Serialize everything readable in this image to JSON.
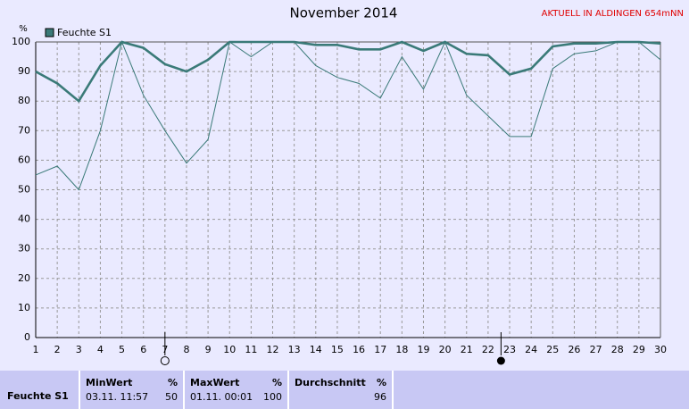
{
  "chart_data": {
    "type": "line",
    "title": "November 2014",
    "station": "AKTUELL IN ALDINGEN 654mNN",
    "y_label": "%",
    "x": [
      1,
      2,
      3,
      4,
      5,
      6,
      7,
      8,
      9,
      10,
      11,
      12,
      13,
      14,
      15,
      16,
      17,
      18,
      19,
      20,
      21,
      22,
      23,
      24,
      25,
      26,
      27,
      28,
      29,
      30
    ],
    "series": [
      {
        "name": "Feuchte S1",
        "color": "#3a7a78",
        "values": [
          90,
          86,
          80,
          92,
          100,
          98,
          92.5,
          90,
          94,
          100,
          100,
          100,
          100,
          99,
          99,
          97.5,
          97.5,
          100,
          97,
          100,
          96,
          95.5,
          89,
          91,
          98.5,
          99.5,
          99.5,
          100,
          100,
          99.5
        ]
      },
      {
        "color": "#3a7a78",
        "values": [
          55,
          58,
          50,
          70,
          100,
          82,
          70,
          59,
          67,
          100,
          95,
          100,
          100,
          92,
          88,
          86,
          81,
          95,
          84,
          100,
          82,
          75,
          68,
          68,
          91,
          96,
          97,
          100,
          100,
          94
        ]
      }
    ],
    "xlim": [
      1,
      30
    ],
    "xticks": [
      1,
      2,
      3,
      4,
      5,
      6,
      7,
      8,
      9,
      10,
      11,
      12,
      13,
      14,
      15,
      16,
      17,
      18,
      19,
      20,
      21,
      22,
      23,
      24,
      25,
      26,
      27,
      28,
      29,
      30
    ],
    "ylim": [
      0,
      100
    ],
    "yticks": [
      0,
      10,
      20,
      30,
      40,
      50,
      60,
      70,
      80,
      90,
      100
    ],
    "grid": true,
    "full_moon_x": 7,
    "new_moon_x": 22.6
  },
  "stats": {
    "label": "Feuchte S1",
    "columns": [
      {
        "title": "MinWert",
        "unit": "%",
        "time": "03.11. 11:57",
        "value": 50
      },
      {
        "title": "MaxWert",
        "unit": "%",
        "time": "01.11. 00:01",
        "value": 100
      },
      {
        "title": "Durchschnitt",
        "unit": "%",
        "value": 96
      }
    ]
  }
}
